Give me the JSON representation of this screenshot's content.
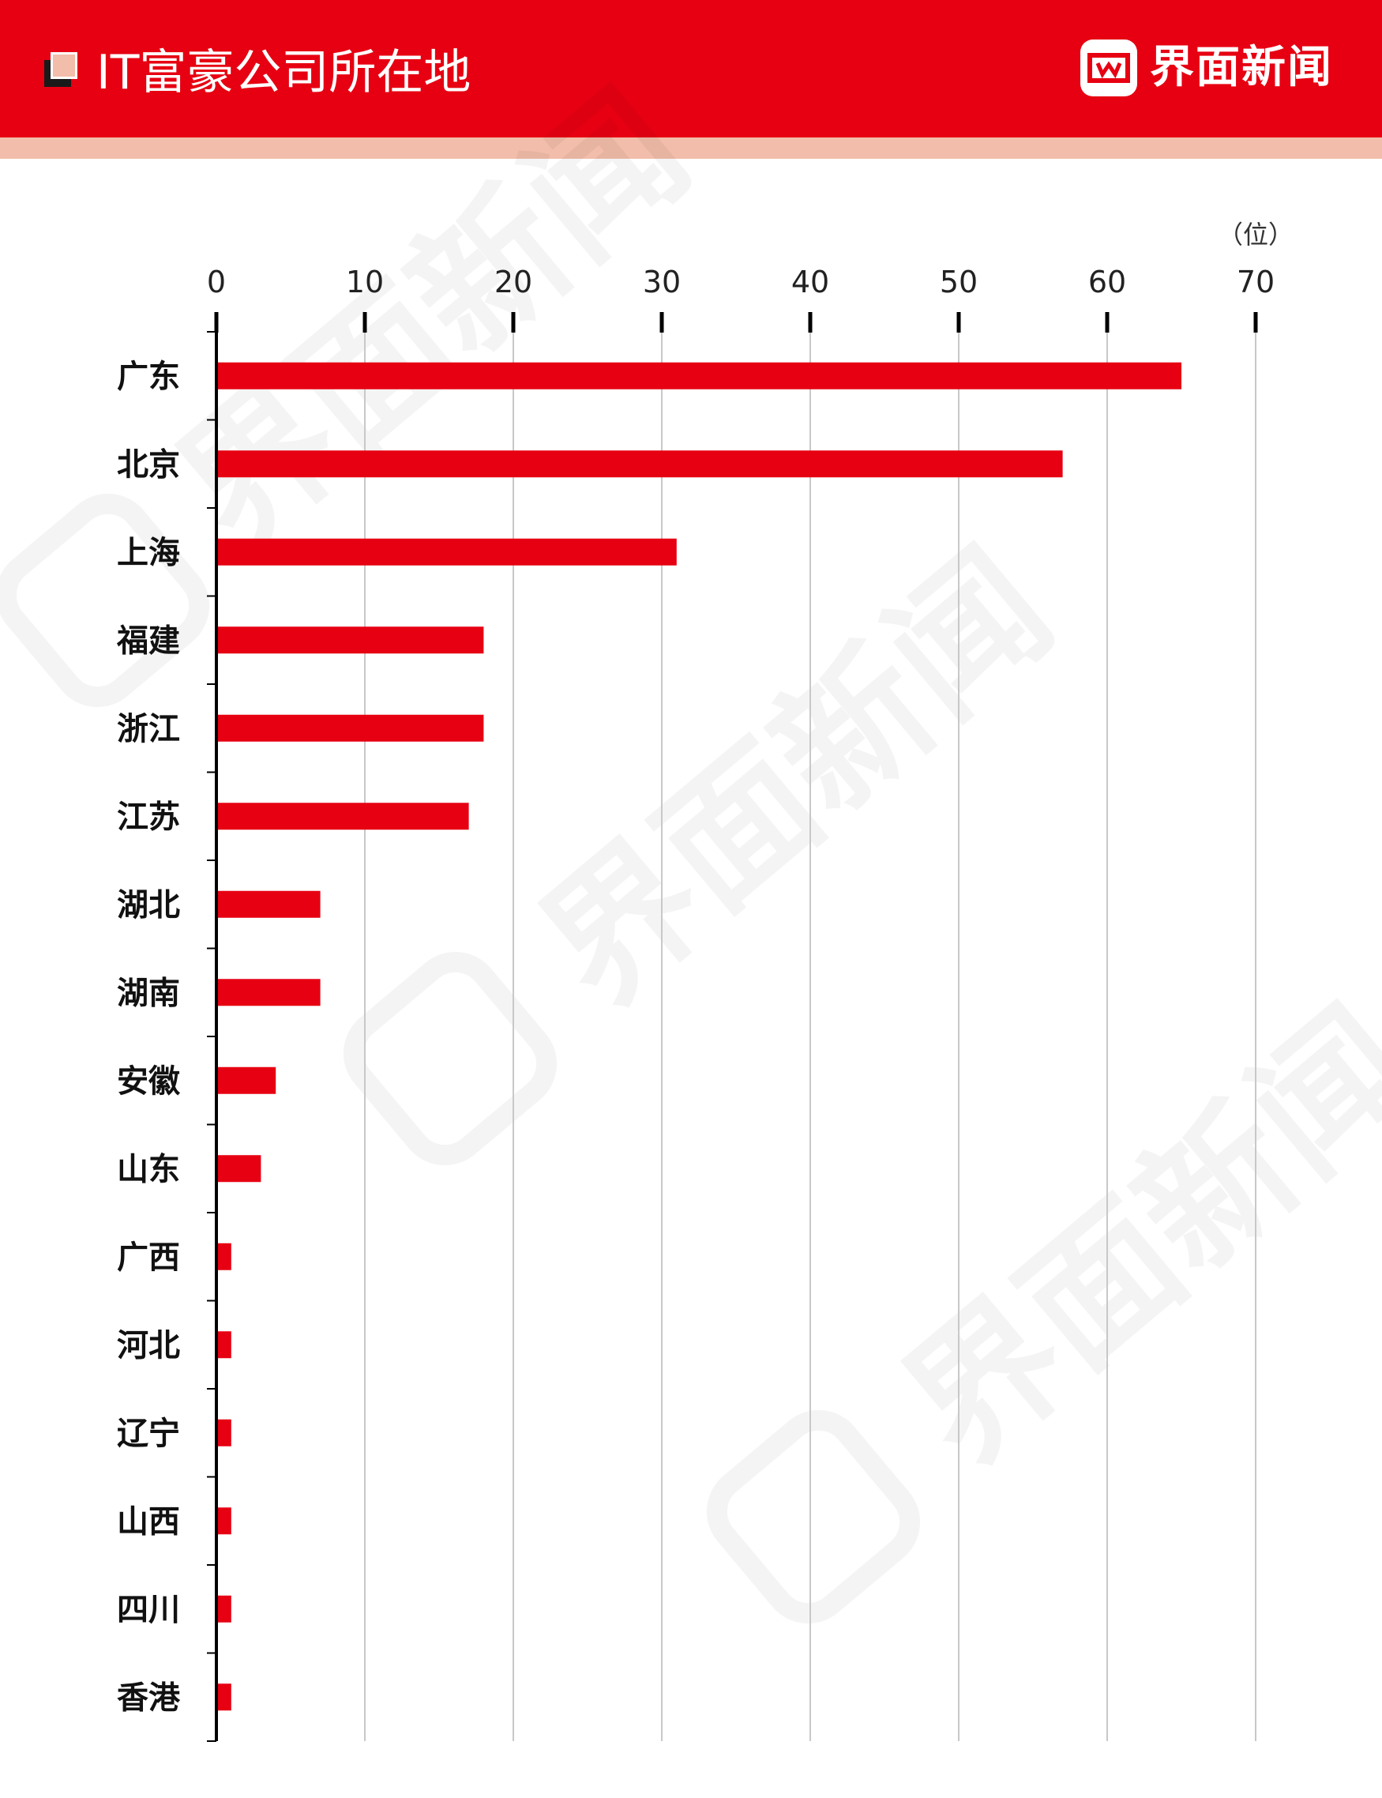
{
  "header": {
    "title": "IT富豪公司所在地",
    "brand": "界面新闻",
    "colors": {
      "header_bg": "#e60012",
      "band": "#f2bdaa"
    },
    "icons": [
      "stacked-squares-icon",
      "jiemian-logo-icon"
    ]
  },
  "watermark": {
    "text": "界面新闻"
  },
  "chart_data": {
    "type": "bar",
    "orientation": "horizontal",
    "title": "IT富豪公司所在地",
    "unit": "（位）",
    "categories": [
      "广东",
      "北京",
      "上海",
      "福建",
      "浙江",
      "江苏",
      "湖北",
      "湖南",
      "安徽",
      "山东",
      "广西",
      "河北",
      "辽宁",
      "山西",
      "四川",
      "香港"
    ],
    "values": [
      65,
      57,
      31,
      18,
      18,
      17,
      7,
      7,
      4,
      3,
      1,
      1,
      1,
      1,
      1,
      1
    ],
    "xlim": [
      0,
      70
    ],
    "ticks": [
      "0",
      "10",
      "20",
      "30",
      "40",
      "50",
      "60",
      "70"
    ],
    "bar_color": "#e60012",
    "grid": true,
    "axis_position": "top"
  }
}
